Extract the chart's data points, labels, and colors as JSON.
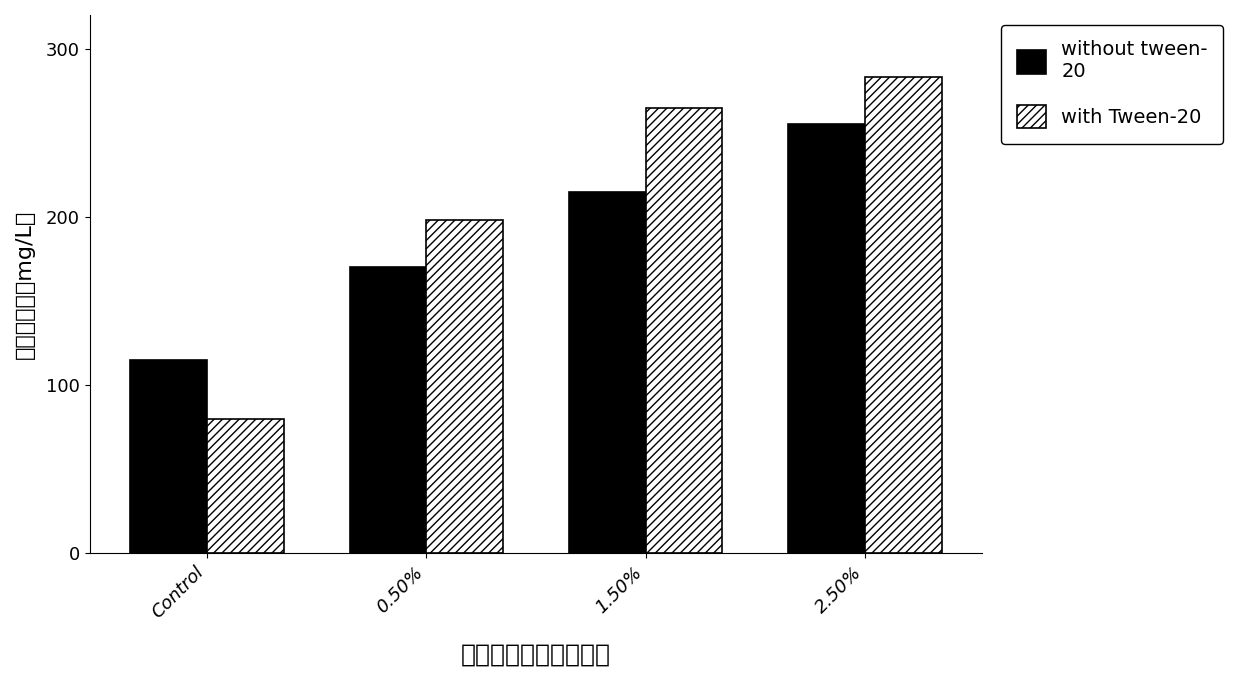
{
  "categories": [
    "Control",
    "0.50%",
    "1.50%",
    "2.50%"
  ],
  "series1_label": "without tween-\n20",
  "series2_label": "with Tween-20",
  "series1_values": [
    115,
    170,
    215,
    255
  ],
  "series2_values": [
    80,
    198,
    265,
    283
  ],
  "series1_color": "#000000",
  "series2_color": "#ffffff",
  "series2_hatch": "////",
  "ylabel": "灵芝酸含量（mg/L）",
  "xlabel": "不同浓度的微晶纤维素",
  "ylim": [
    0,
    320
  ],
  "yticks": [
    0,
    100,
    200,
    300
  ],
  "bar_width": 0.35,
  "background_color": "#ffffff",
  "title_fontsize": 18,
  "label_fontsize": 16,
  "tick_fontsize": 13,
  "legend_fontsize": 14
}
